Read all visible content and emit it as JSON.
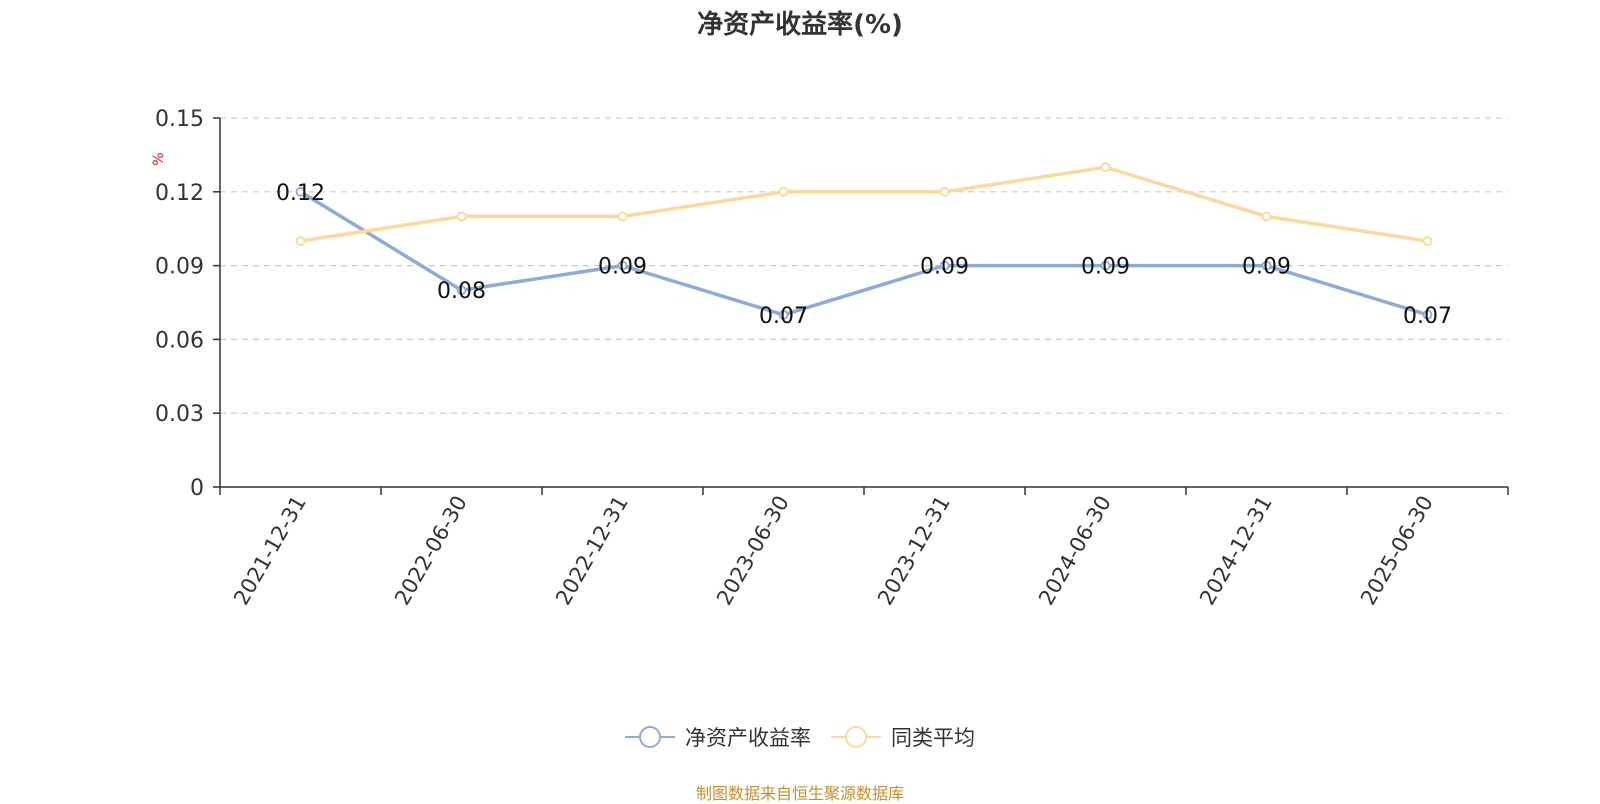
{
  "chart_data": {
    "type": "line",
    "title": "净资产收益率(%)",
    "ylabel": "%",
    "x": [
      "2021-12-31",
      "2022-06-30",
      "2022-12-31",
      "2023-06-30",
      "2023-12-31",
      "2024-06-30",
      "2024-12-31",
      "2025-06-30"
    ],
    "ylim": [
      0,
      0.15
    ],
    "yticks": [
      "0",
      "0.03",
      "0.06",
      "0.09",
      "0.12",
      "0.15"
    ],
    "grid": true,
    "legend_position": "bottom",
    "series": [
      {
        "name": "净资产收益率",
        "values": [
          0.12,
          0.08,
          0.09,
          0.07,
          0.09,
          0.09,
          0.09,
          0.07
        ],
        "labels": [
          "0.12",
          "0.08",
          "0.09",
          "0.07",
          "0.09",
          "0.09",
          "0.09",
          "0.07"
        ],
        "color": "#8eaad8"
      },
      {
        "name": "同类平均",
        "values": [
          0.1,
          0.11,
          0.11,
          0.12,
          0.12,
          0.13,
          0.11,
          0.1
        ],
        "color": "#fad99a"
      }
    ]
  },
  "source_note": "制图数据来自恒生聚源数据库",
  "colors": {
    "axis": "#333333",
    "grid": "#cccccc",
    "ylabel": "#e02020",
    "source": "#c8902a"
  }
}
